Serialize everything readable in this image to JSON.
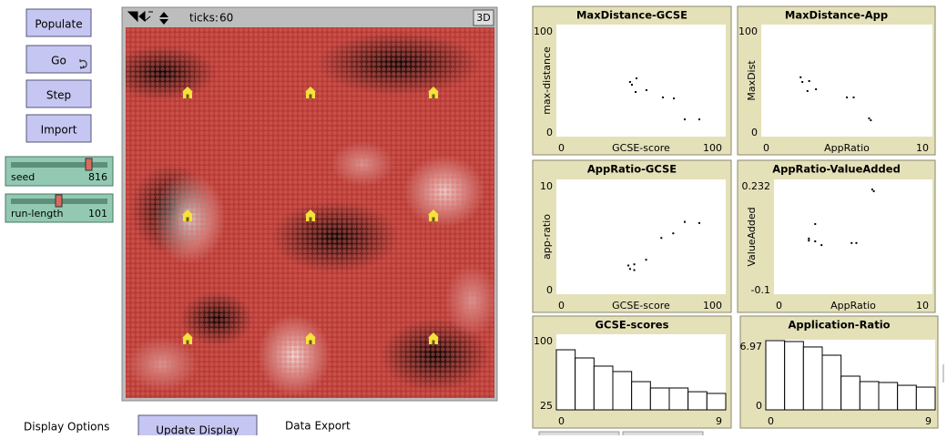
{
  "buttons": [
    "Populate",
    "Go",
    "Step",
    "Import"
  ],
  "sliders": [
    {
      "name": "seed",
      "value": 816
    },
    {
      "name": "run-length",
      "value": 101
    }
  ],
  "view": {
    "ticks_label": "ticks:",
    "ticks": 60,
    "mode_button": "3D"
  },
  "chart_data": [
    {
      "type": "scatter",
      "title": "MaxDistance-GCSE",
      "x_label": "GCSE-score",
      "y_label": "max-distance",
      "xlim": [
        0,
        100
      ],
      "ylim": [
        0,
        100
      ],
      "xticks": [
        0,
        100
      ],
      "yticks": [
        0,
        100
      ],
      "color": "#000000",
      "x": [
        43.5,
        44.6,
        47.3,
        46.8,
        53.2,
        62.9,
        69.4,
        75.8,
        84.4
      ],
      "values": [
        48.8,
        46.3,
        52,
        39.8,
        41.5,
        35,
        34.1,
        15.4,
        15.4
      ]
    },
    {
      "type": "scatter",
      "title": "MaxDistance-App",
      "x_label": "AppRatio",
      "y_label": "MaxDist",
      "xlim": [
        0,
        10
      ],
      "ylim": [
        0,
        100
      ],
      "xticks": [
        0,
        10
      ],
      "yticks": [
        0,
        100
      ],
      "color": "#000000",
      "x": [
        2.3,
        2.4,
        2.8,
        2.7,
        3.2,
        5.0,
        5.4,
        6.3,
        6.4
      ],
      "values": [
        53,
        48.8,
        49.6,
        40.7,
        42.3,
        35,
        35,
        16.3,
        14.6
      ]
    },
    {
      "type": "scatter",
      "title": "AppRatio-GCSE",
      "x_label": "GCSE-score",
      "y_label": "app-ratio",
      "xlim": [
        0,
        100
      ],
      "ylim": [
        0,
        10
      ],
      "xticks": [
        0,
        100
      ],
      "yticks": [
        0,
        10
      ],
      "color": "#000000",
      "x": [
        42.5,
        43.5,
        46,
        46,
        53,
        62,
        69,
        75.8,
        84.4
      ],
      "values": [
        2.5,
        2.2,
        2.1,
        2.6,
        3.0,
        4.9,
        5.3,
        6.3,
        6.2
      ]
    },
    {
      "type": "scatter",
      "title": "AppRatio-ValueAdded",
      "x_label": "AppRatio",
      "y_label": "ValueAdded",
      "xlim": [
        0,
        10
      ],
      "ylim": [
        -0.1,
        0.232
      ],
      "xticks": [
        0,
        10
      ],
      "yticks": [
        -0.1,
        0.232
      ],
      "color": "#000000",
      "x": [
        2.2,
        2.2,
        2.6,
        2.6,
        3.0,
        4.9,
        5.2,
        6.2,
        6.3
      ],
      "values": [
        0.061,
        0.055,
        0.103,
        0.053,
        0.042,
        0.048,
        0.048,
        0.203,
        0.198
      ]
    },
    {
      "type": "histogram",
      "title": "GCSE-scores",
      "xlim": [
        0,
        9
      ],
      "ylim": [
        25,
        100
      ],
      "xticks": [
        0,
        9
      ],
      "yticks": [
        25,
        100
      ],
      "color": "#ffffff",
      "bins": [
        0,
        1,
        2,
        3,
        4,
        5,
        6,
        7,
        8,
        9
      ],
      "values": [
        84.6,
        76.5,
        68.4,
        63,
        53,
        46.7,
        46.7,
        43,
        41.3
      ]
    },
    {
      "type": "histogram",
      "title": "Application-Ratio",
      "xlim": [
        0,
        9
      ],
      "ylim": [
        0,
        6.97
      ],
      "xticks": [
        0,
        9
      ],
      "yticks": [
        0,
        6.97
      ],
      "color": "#ffffff",
      "bins": [
        0,
        1,
        2,
        3,
        4,
        5,
        6,
        7,
        8,
        9
      ],
      "values": [
        6.88,
        6.79,
        6.25,
        5.43,
        3.35,
        2.81,
        2.72,
        2.44,
        2.26
      ]
    }
  ],
  "footer": {
    "display_options": "Display Options",
    "update_button": "Update Display",
    "data_export": "Data Export"
  }
}
